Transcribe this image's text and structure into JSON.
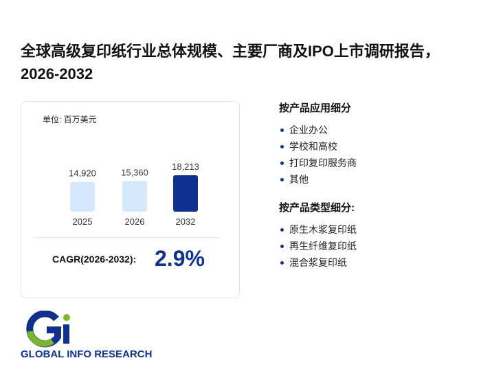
{
  "header": {
    "title": "全球高级复印纸行业总体规模、主要厂商及IPO上市调研报告，2026-2032"
  },
  "chart_data": {
    "type": "bar",
    "unit": "单位: 百万美元",
    "categories": [
      "2025",
      "2026",
      "2032"
    ],
    "values": [
      14920,
      15360,
      18213
    ],
    "value_labels": [
      "14,920",
      "15,360",
      "18,213"
    ],
    "colors": [
      "#d6e8fb",
      "#d6e8fb",
      "#10318f"
    ]
  },
  "cagr": {
    "label": "CAGR(2026-2032):",
    "value": "2.9%"
  },
  "sections": [
    {
      "heading": "按产品应用细分",
      "items": [
        "企业办公",
        "学校和高校",
        "打印复印服务商",
        "其他"
      ]
    },
    {
      "heading": "按产品类型细分:",
      "items": [
        "原生木浆复印纸",
        "再生纤维复印纸",
        "混合浆复印纸"
      ]
    }
  ],
  "logo": {
    "text": "GLOBAL INFO RESEARCH"
  }
}
